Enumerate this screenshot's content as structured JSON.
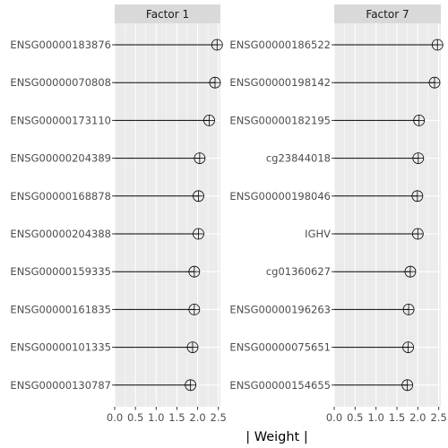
{
  "chart_data": [
    {
      "type": "lollipop",
      "facet": "Factor 1",
      "xlim": [
        0,
        2.55
      ],
      "xticks": [
        "0.0",
        "0.5",
        "1.0",
        "1.5",
        "2.0",
        "2.5"
      ],
      "xtick_values": [
        0,
        0.5,
        1.0,
        1.5,
        2.0,
        2.5
      ],
      "features": [
        "ENSG00000183876",
        "ENSG00000070808",
        "ENSG00000173110",
        "ENSG00000204389",
        "ENSG00000168878",
        "ENSG00000204388",
        "ENSG00000159335",
        "ENSG00000161835",
        "ENSG00000101335",
        "ENSG00000130787"
      ],
      "values": [
        2.47,
        2.42,
        2.28,
        2.05,
        2.02,
        2.02,
        1.92,
        1.92,
        1.88,
        1.83
      ]
    },
    {
      "type": "lollipop",
      "facet": "Factor 7",
      "xlim": [
        0,
        2.55
      ],
      "xticks": [
        "0.0",
        "0.5",
        "1.0",
        "1.5",
        "2.0",
        "2.5"
      ],
      "xtick_values": [
        0,
        0.5,
        1.0,
        1.5,
        2.0,
        2.5
      ],
      "features": [
        "ENSG00000186522",
        "ENSG00000198142",
        "ENSG00000182195",
        "cg23844018",
        "ENSG00000198046",
        "IGHV",
        "cg01360627",
        "ENSG00000196263",
        "ENSG00000075651",
        "ENSG00000154655"
      ],
      "values": [
        2.47,
        2.4,
        2.03,
        2.01,
        1.99,
        2.0,
        1.82,
        1.78,
        1.77,
        1.75
      ]
    }
  ],
  "xlabel": "| Weight |",
  "colors": {
    "panel": "#ebebeb",
    "strip": "#d9d9d9",
    "grid": "#ffffff",
    "segment": "#000000",
    "point_stroke": "#000000"
  }
}
